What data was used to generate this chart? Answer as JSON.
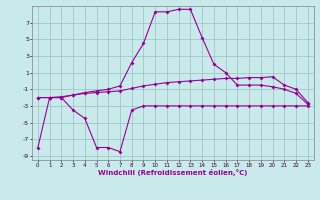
{
  "xlabel": "Windchill (Refroidissement éolien,°C)",
  "x": [
    0,
    1,
    2,
    3,
    4,
    5,
    6,
    7,
    8,
    9,
    10,
    11,
    12,
    13,
    14,
    15,
    16,
    17,
    18,
    19,
    20,
    21,
    22,
    23
  ],
  "line1": [
    -8.0,
    -2.0,
    -2.0,
    -3.5,
    -4.5,
    -8.0,
    -8.0,
    -8.5,
    -3.5,
    -3.0,
    -3.0,
    -3.0,
    -3.0,
    -3.0,
    -3.0,
    -3.0,
    -3.0,
    -3.0,
    -3.0,
    -3.0,
    -3.0,
    -3.0,
    -3.0,
    -3.0
  ],
  "line2": [
    -2.0,
    -2.0,
    -2.0,
    -1.7,
    -1.4,
    -1.2,
    -1.0,
    -0.6,
    2.2,
    4.5,
    8.3,
    8.3,
    8.6,
    8.6,
    5.2,
    2.0,
    1.0,
    -0.5,
    -0.5,
    -0.5,
    -0.7,
    -1.0,
    -1.5,
    -2.8
  ],
  "line3": [
    -2.0,
    -2.0,
    -1.9,
    -1.7,
    -1.5,
    -1.4,
    -1.3,
    -1.2,
    -0.9,
    -0.6,
    -0.4,
    -0.2,
    -0.1,
    0.0,
    0.1,
    0.2,
    0.3,
    0.3,
    0.4,
    0.4,
    0.5,
    -0.5,
    -1.0,
    -2.6
  ],
  "line_color": "#990099",
  "bg_color": "#c8eaea",
  "grid_color": "#9bbebe",
  "ylim": [
    -9.5,
    9.0
  ],
  "yticks": [
    -9,
    -7,
    -5,
    -3,
    -1,
    1,
    3,
    5,
    7
  ],
  "xlim": [
    -0.5,
    23.5
  ],
  "figw": 3.2,
  "figh": 2.0,
  "dpi": 100
}
